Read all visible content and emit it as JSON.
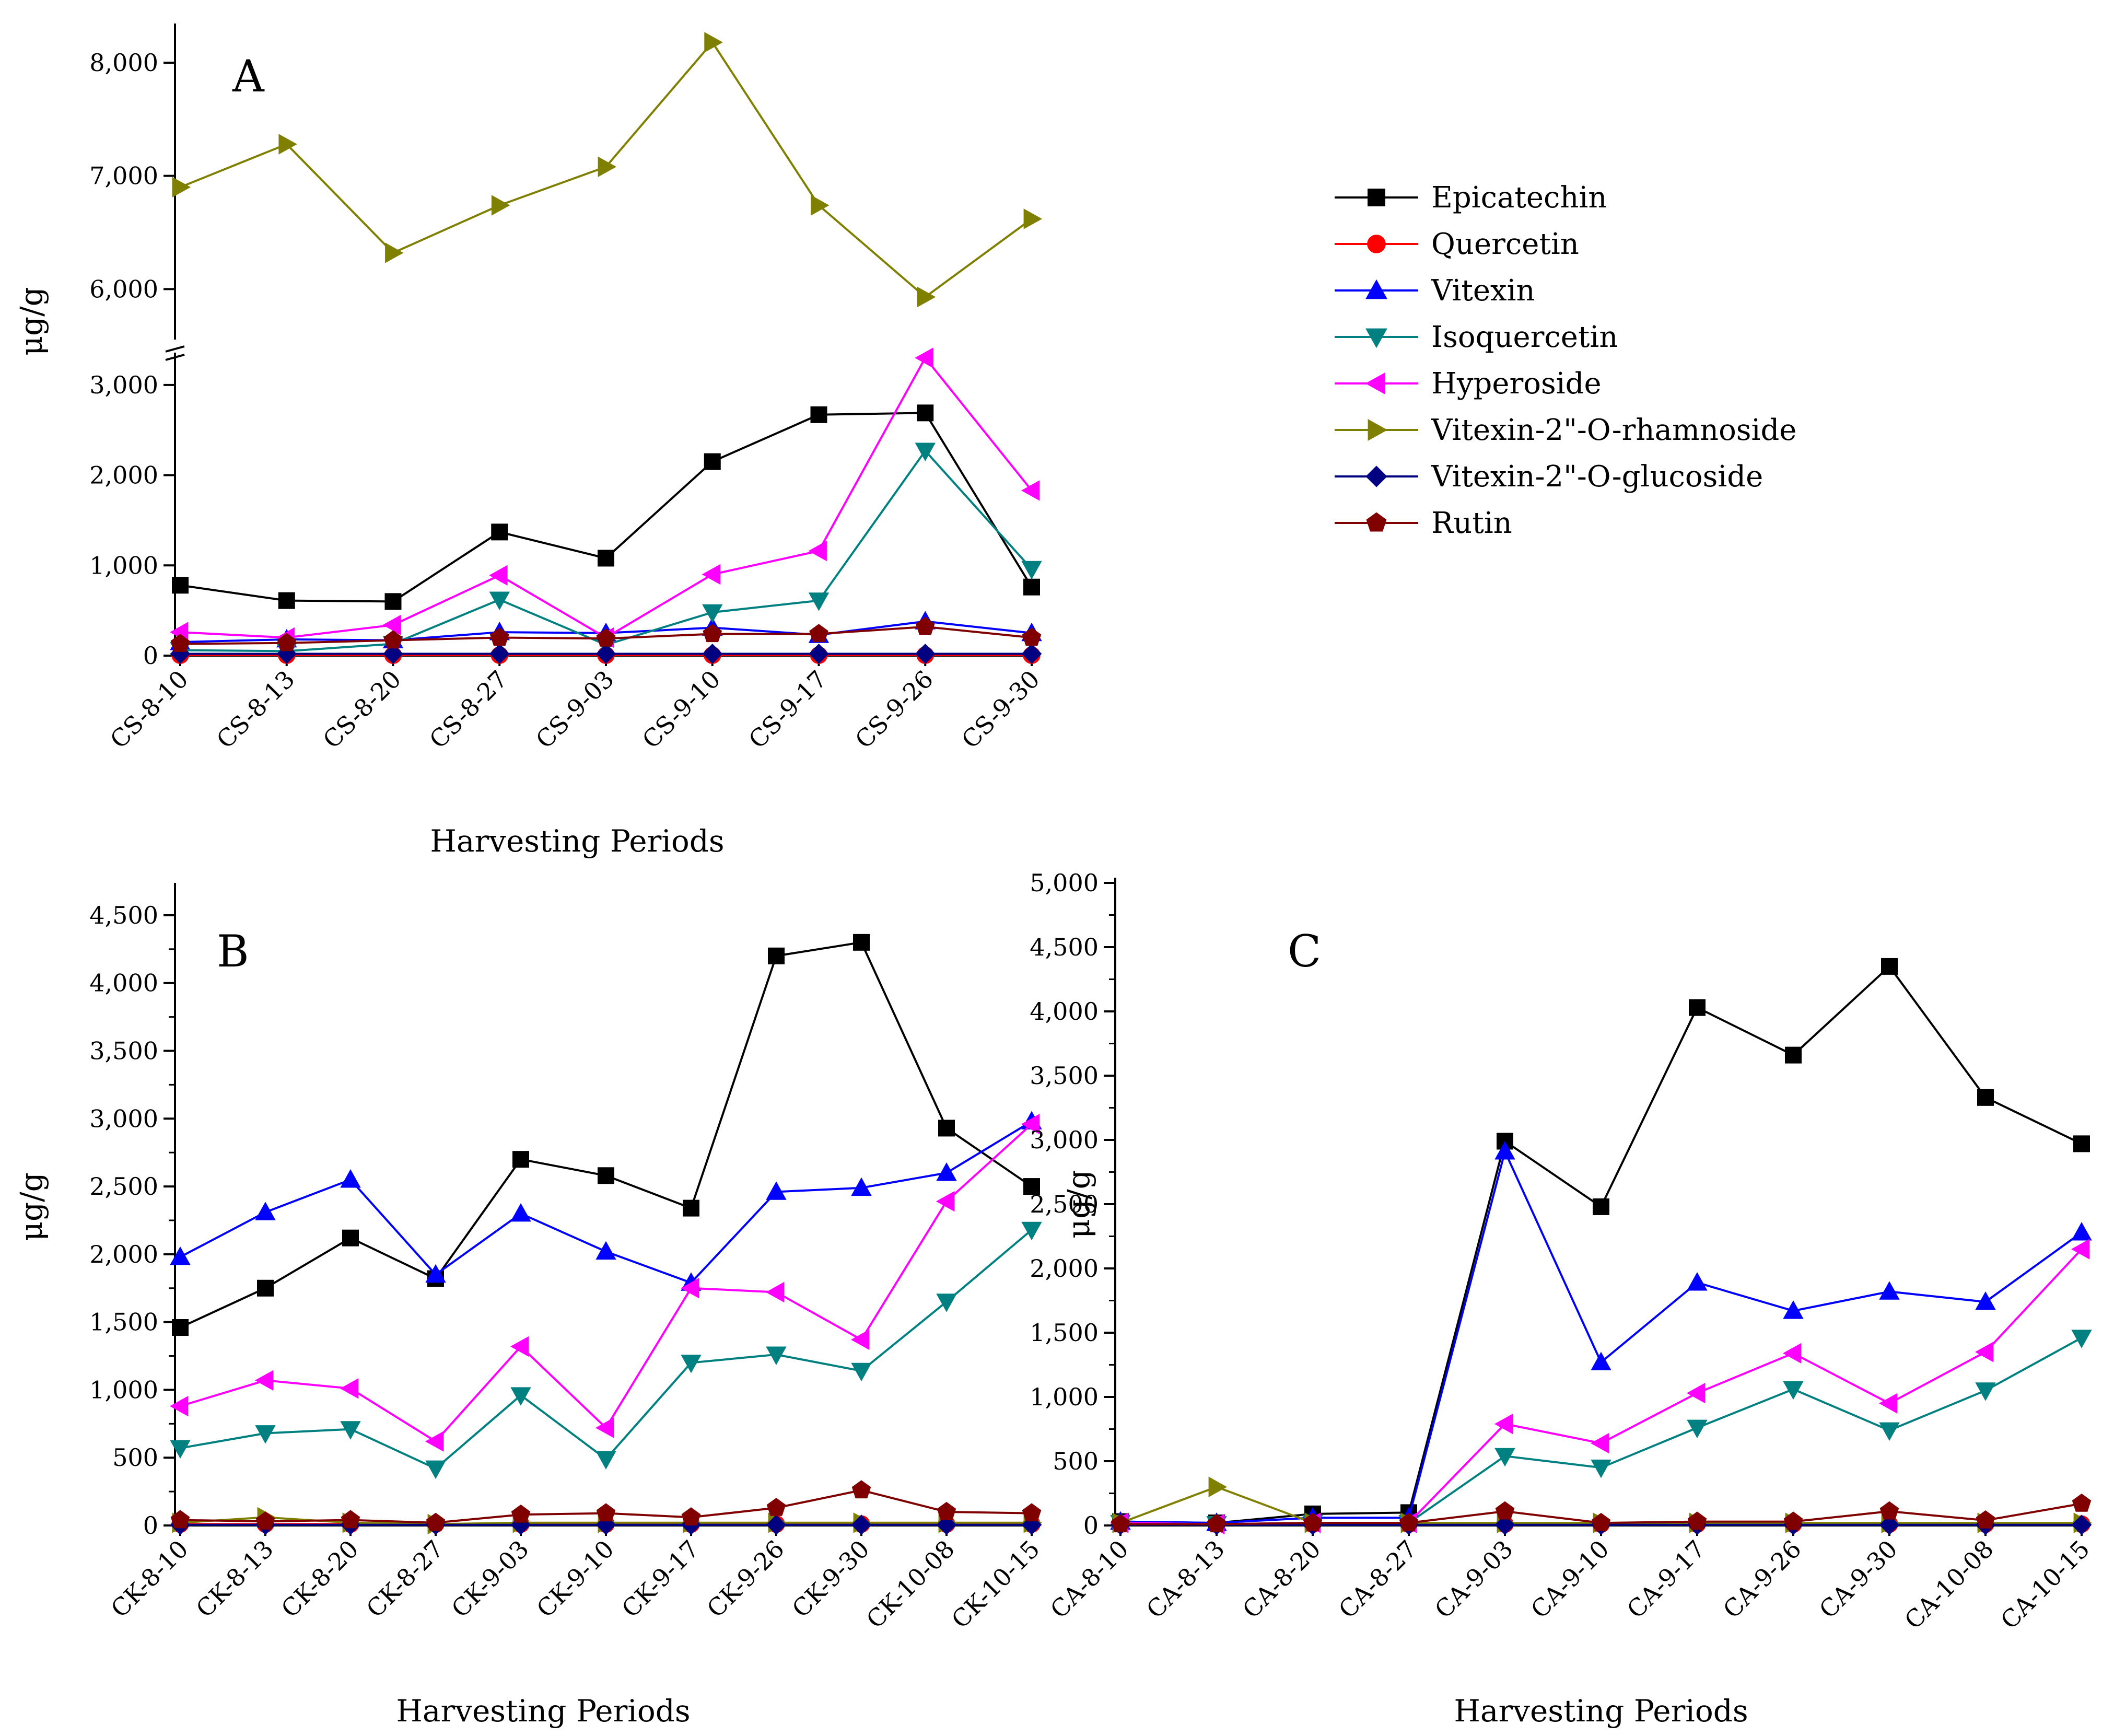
{
  "series_styles": [
    {
      "name": "Epicatechin",
      "color": "#000000",
      "marker": "square"
    },
    {
      "name": "Quercetin",
      "color": "#ff0000",
      "marker": "circle"
    },
    {
      "name": "Vitexin",
      "color": "#0000ff",
      "marker": "triangle-up"
    },
    {
      "name": "Isoquercetin",
      "color": "#008080",
      "marker": "triangle-down"
    },
    {
      "name": "Hyperoside",
      "color": "#ff00ff",
      "marker": "triangle-left"
    },
    {
      "name": "Vitexin-2\"-O-rhamnoside",
      "color": "#808000",
      "marker": "triangle-right"
    },
    {
      "name": "Vitexin-2\"-O-glucoside",
      "color": "#000080",
      "marker": "diamond"
    },
    {
      "name": "Rutin",
      "color": "#800000",
      "marker": "pentagon"
    }
  ],
  "legend": {
    "placement": "top-right",
    "entries": [
      "Epicatechin",
      "Quercetin",
      "Vitexin",
      "Isoquercetin",
      "Hyperoside",
      "Vitexin-2\"-O-rhamnoside",
      "Vitexin-2\"-O-glucoside",
      "Rutin"
    ]
  },
  "chart_data": [
    {
      "panel": "A",
      "type": "line",
      "xlabel": "Harvesting Periods",
      "ylabel": "μg/g",
      "axis_break": {
        "lower_ylim": [
          0,
          3300
        ],
        "upper_ylim": [
          5600,
          8300
        ]
      },
      "ylim": [
        0,
        8300
      ],
      "yticks": [
        0,
        1000,
        2000,
        3000,
        6000,
        7000,
        8000
      ],
      "ytick_labels": [
        "0",
        "1,000",
        "2,000",
        "3,000",
        "6,000",
        "7,000",
        "8,000"
      ],
      "categories": [
        "CS-8-10",
        "CS-8-13",
        "CS-8-20",
        "CS-8-27",
        "CS-9-03",
        "CS-9-10",
        "CS-9-17",
        "CS-9-26",
        "CS-9-30"
      ],
      "series": [
        {
          "name": "Epicatechin",
          "values": [
            780,
            610,
            600,
            1370,
            1080,
            2150,
            2670,
            2690,
            760
          ]
        },
        {
          "name": "Quercetin",
          "values": [
            5,
            5,
            5,
            5,
            5,
            5,
            5,
            5,
            5
          ]
        },
        {
          "name": "Vitexin",
          "values": [
            150,
            180,
            170,
            260,
            250,
            310,
            230,
            380,
            250
          ]
        },
        {
          "name": "Isoquercetin",
          "values": [
            60,
            50,
            130,
            620,
            120,
            480,
            610,
            2270,
            960
          ]
        },
        {
          "name": "Hyperoside",
          "values": [
            260,
            200,
            340,
            890,
            200,
            900,
            1160,
            3300,
            1830
          ]
        },
        {
          "name": "Vitexin-2\"-O-rhamnoside",
          "values": [
            6900,
            7280,
            6320,
            6740,
            7080,
            8180,
            6740,
            5930,
            6620
          ]
        },
        {
          "name": "Vitexin-2\"-O-glucoside",
          "values": [
            20,
            20,
            20,
            20,
            20,
            20,
            20,
            20,
            20
          ]
        },
        {
          "name": "Rutin",
          "values": [
            130,
            140,
            170,
            200,
            190,
            240,
            240,
            320,
            200
          ]
        }
      ]
    },
    {
      "panel": "B",
      "type": "line",
      "xlabel": "Harvesting Periods",
      "ylabel": "μg/g",
      "ylim": [
        0,
        4500
      ],
      "yticks": [
        0,
        500,
        1000,
        1500,
        2000,
        2500,
        3000,
        3500,
        4000,
        4500
      ],
      "ytick_labels": [
        "0",
        "500",
        "1,000",
        "1,500",
        "2,000",
        "2,500",
        "3,000",
        "3,500",
        "4,000",
        "4,500"
      ],
      "categories": [
        "CK-8-10",
        "CK-8-13",
        "CK-8-20",
        "CK-8-27",
        "CK-9-03",
        "CK-9-10",
        "CK-9-17",
        "CK-9-26",
        "CK-9-30",
        "CK-10-08",
        "CK-10-15"
      ],
      "series": [
        {
          "name": "Epicatechin",
          "values": [
            1460,
            1750,
            2120,
            1820,
            2700,
            2580,
            2340,
            4200,
            4300,
            2930,
            2500
          ]
        },
        {
          "name": "Quercetin",
          "values": [
            10,
            10,
            10,
            10,
            10,
            10,
            10,
            10,
            10,
            10,
            10
          ]
        },
        {
          "name": "Vitexin",
          "values": [
            1980,
            2310,
            2550,
            1850,
            2300,
            2020,
            1790,
            2460,
            2490,
            2600,
            2980
          ]
        },
        {
          "name": "Isoquercetin",
          "values": [
            570,
            680,
            710,
            420,
            960,
            490,
            1200,
            1260,
            1140,
            1650,
            2180
          ]
        },
        {
          "name": "Hyperoside",
          "values": [
            880,
            1070,
            1010,
            620,
            1320,
            720,
            1750,
            1720,
            1370,
            2390,
            2960
          ]
        },
        {
          "name": "Vitexin-2\"-O-rhamnoside",
          "values": [
            20,
            60,
            20,
            10,
            20,
            20,
            20,
            20,
            20,
            20,
            20
          ]
        },
        {
          "name": "Vitexin-2\"-O-glucoside",
          "values": [
            5,
            5,
            5,
            5,
            5,
            5,
            5,
            5,
            5,
            5,
            5
          ]
        },
        {
          "name": "Rutin",
          "values": [
            40,
            30,
            40,
            20,
            80,
            90,
            60,
            130,
            260,
            100,
            90
          ]
        }
      ]
    },
    {
      "panel": "C",
      "type": "line",
      "xlabel": "Harvesting Periods",
      "ylabel": "μg/g",
      "ylim": [
        0,
        5000
      ],
      "yticks": [
        0,
        500,
        1000,
        1500,
        2000,
        2500,
        3000,
        3500,
        4000,
        4500,
        5000
      ],
      "ytick_labels": [
        "0",
        "500",
        "1,000",
        "1,500",
        "2,000",
        "2,500",
        "3,000",
        "3,500",
        "4,000",
        "4,500",
        "5,000"
      ],
      "categories": [
        "CA-8-10",
        "CA-8-13",
        "CA-8-20",
        "CA-8-27",
        "CA-9-03",
        "CA-9-10",
        "CA-9-17",
        "CA-9-26",
        "CA-9-30",
        "CA-10-08",
        "CA-10-15"
      ],
      "series": [
        {
          "name": "Epicatechin",
          "values": [
            30,
            20,
            90,
            100,
            2990,
            2480,
            4030,
            3660,
            4350,
            3330,
            2970
          ]
        },
        {
          "name": "Quercetin",
          "values": [
            10,
            10,
            10,
            10,
            10,
            10,
            10,
            10,
            10,
            10,
            10
          ]
        },
        {
          "name": "Vitexin",
          "values": [
            30,
            20,
            60,
            60,
            2910,
            1270,
            1890,
            1670,
            1820,
            1740,
            2280
          ]
        },
        {
          "name": "Isoquercetin",
          "values": [
            20,
            10,
            20,
            20,
            540,
            450,
            760,
            1060,
            740,
            1050,
            1460
          ]
        },
        {
          "name": "Hyperoside",
          "values": [
            20,
            10,
            20,
            20,
            790,
            640,
            1030,
            1340,
            950,
            1350,
            2150
          ]
        },
        {
          "name": "Vitexin-2\"-O-rhamnoside",
          "values": [
            20,
            300,
            20,
            20,
            20,
            20,
            20,
            20,
            20,
            20,
            20
          ]
        },
        {
          "name": "Vitexin-2\"-O-glucoside",
          "values": [
            5,
            5,
            5,
            5,
            5,
            5,
            5,
            5,
            5,
            5,
            5
          ]
        },
        {
          "name": "Rutin",
          "values": [
            10,
            10,
            20,
            20,
            110,
            20,
            30,
            30,
            110,
            40,
            170
          ]
        }
      ]
    }
  ]
}
